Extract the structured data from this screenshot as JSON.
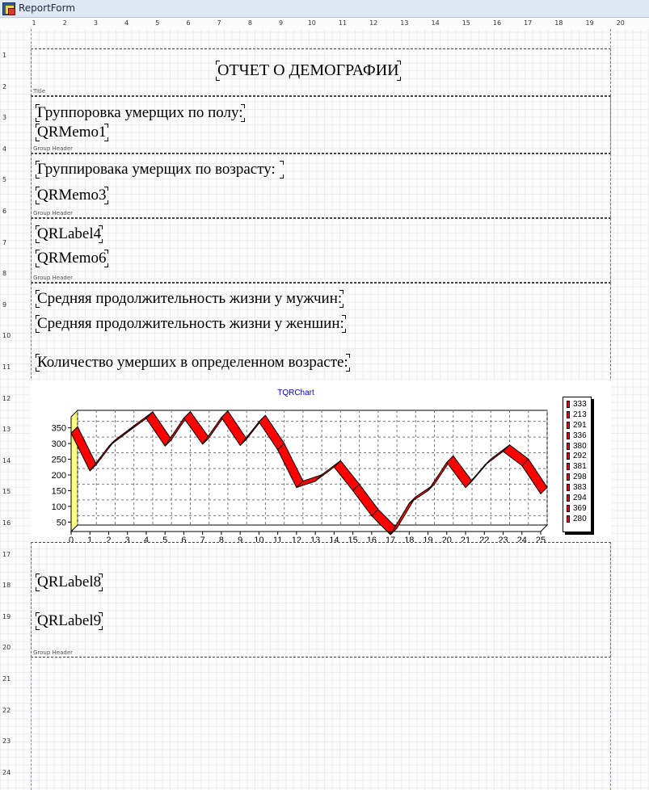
{
  "window": {
    "title": "ReportForm"
  },
  "ruler_h": [
    "1",
    "2",
    "3",
    "4",
    "5",
    "6",
    "7",
    "8",
    "9",
    "10",
    "11",
    "12",
    "13",
    "14",
    "15",
    "16",
    "17",
    "18",
    "19",
    "20"
  ],
  "ruler_v": [
    "1",
    "2",
    "3",
    "4",
    "5",
    "6",
    "7",
    "8",
    "9",
    "10",
    "11",
    "12",
    "13",
    "14",
    "15",
    "16",
    "17",
    "18",
    "19",
    "20",
    "21",
    "22",
    "23",
    "24"
  ],
  "bands": {
    "title": {
      "label": "Title",
      "heading": "ОТЧЕТ О ДЕМОГРАФИИ"
    },
    "group1": {
      "label": "Group Header",
      "caption": "Группоровка умерщих по полу:",
      "memo": "QRMemo1"
    },
    "group2": {
      "label": "Group Header",
      "caption": "Группировака умерщих по возрасту:",
      "memo": "QRMemo3"
    },
    "group3": {
      "label": "Group Header",
      "caption": "QRLabel4",
      "memo": "QRMemo6"
    },
    "group4": {
      "line1": "Средняя продолжительность жизни у мужчин:",
      "line2": "Средняя продолжительность жизни у женшин:",
      "line3": "Количество умерших в определенном возрасте:"
    },
    "group5": {
      "label": "Group Header",
      "label8": "QRLabel8",
      "label9": "QRLabel9"
    }
  },
  "chart_data": {
    "type": "area",
    "title": "TQRChart",
    "style": "3d-ribbon",
    "series_color": "#ff0000",
    "wall_color": "#ffff80",
    "x": [
      0,
      1,
      2,
      3,
      4,
      5,
      6,
      7,
      8,
      9,
      10,
      11,
      12,
      13,
      14,
      15,
      16,
      17,
      18,
      19,
      20,
      21,
      22,
      23,
      24,
      25
    ],
    "y": [
      333,
      213,
      291,
      336,
      380,
      292,
      381,
      298,
      383,
      294,
      369,
      280,
      160,
      180,
      225,
      150,
      70,
      10,
      110,
      150,
      240,
      160,
      230,
      275,
      230,
      140
    ],
    "yticks": [
      50,
      100,
      150,
      200,
      250,
      300,
      350
    ],
    "ylim": [
      20,
      385
    ],
    "xlim": [
      0,
      25
    ],
    "grid": true,
    "legend_position": "right",
    "legend": [
      "333",
      "213",
      "291",
      "336",
      "380",
      "292",
      "381",
      "298",
      "383",
      "294",
      "369",
      "280"
    ]
  }
}
